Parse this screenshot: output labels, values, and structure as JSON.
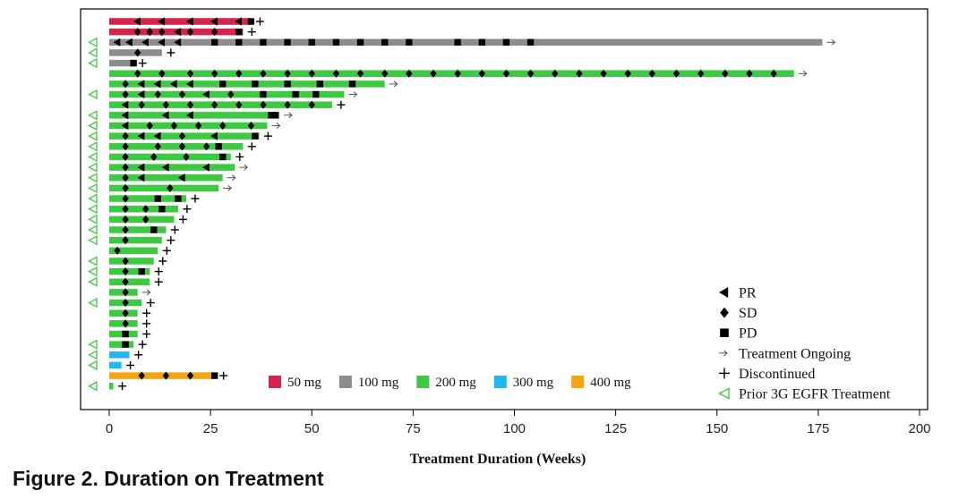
{
  "caption": "Figure 2. Duration on Treatment",
  "chart_data": {
    "type": "bar",
    "orientation": "horizontal",
    "title": "",
    "xlabel": "Treatment Duration (Weeks)",
    "ylabel": "",
    "xlim": [
      0,
      200
    ],
    "x_ticks": [
      0,
      25,
      50,
      75,
      100,
      125,
      150,
      175,
      200
    ],
    "grid": false,
    "legend_position": "bottom-right",
    "doses": [
      {
        "key": "50",
        "label": "50 mg",
        "color": "#d6254a"
      },
      {
        "key": "100",
        "label": "100 mg",
        "color": "#8c8c8c"
      },
      {
        "key": "200",
        "label": "200 mg",
        "color": "#3ec943"
      },
      {
        "key": "300",
        "label": "300 mg",
        "color": "#21b8ef"
      },
      {
        "key": "400",
        "label": "400 mg",
        "color": "#f5a412"
      }
    ],
    "marker_legend": [
      {
        "symbol": "PR",
        "label": "PR"
      },
      {
        "symbol": "SD",
        "label": "SD"
      },
      {
        "symbol": "PD",
        "label": "PD"
      },
      {
        "symbol": "ongoing",
        "label": "Treatment Ongoing"
      },
      {
        "symbol": "discontinued",
        "label": "Discontinued"
      },
      {
        "symbol": "prior3g",
        "label": "Prior 3G EGFR Treatment"
      }
    ],
    "patients": [
      {
        "dose": "50",
        "weeks": 35,
        "status": "discontinued",
        "prior3g": false,
        "markers": [
          [
            "PR",
            7
          ],
          [
            "PR",
            13
          ],
          [
            "PR",
            20
          ],
          [
            "PR",
            26
          ],
          [
            "PR",
            32
          ],
          [
            "PD",
            35
          ]
        ]
      },
      {
        "dose": "50",
        "weeks": 33,
        "status": "discontinued",
        "prior3g": false,
        "markers": [
          [
            "SD",
            7
          ],
          [
            "SD",
            10
          ],
          [
            "SD",
            13
          ],
          [
            "PR",
            17
          ],
          [
            "SD",
            20
          ],
          [
            "SD",
            26
          ],
          [
            "PD",
            32
          ]
        ]
      },
      {
        "dose": "100",
        "weeks": 176,
        "status": "ongoing",
        "prior3g": true,
        "markers": [
          [
            "PR",
            2
          ],
          [
            "PR",
            5
          ],
          [
            "PR",
            9
          ],
          [
            "PR",
            13
          ],
          [
            "PR",
            17
          ],
          [
            "PD",
            26
          ],
          [
            "PD",
            32
          ],
          [
            "PD",
            38
          ],
          [
            "PD",
            44
          ],
          [
            "PD",
            50
          ],
          [
            "PD",
            56
          ],
          [
            "PD",
            62
          ],
          [
            "PD",
            68
          ],
          [
            "PD",
            74
          ],
          [
            "PD",
            86
          ],
          [
            "PD",
            92
          ],
          [
            "PD",
            98
          ],
          [
            "PD",
            104
          ]
        ]
      },
      {
        "dose": "100",
        "weeks": 13,
        "status": "discontinued",
        "prior3g": true,
        "markers": [
          [
            "SD",
            7
          ]
        ]
      },
      {
        "dose": "100",
        "weeks": 6,
        "status": "discontinued",
        "prior3g": true,
        "markers": [
          [
            "PD",
            6
          ]
        ]
      },
      {
        "dose": "200",
        "weeks": 169,
        "status": "ongoing",
        "prior3g": false,
        "markers": [
          [
            "SD",
            7
          ],
          [
            "SD",
            13
          ],
          [
            "SD",
            20
          ],
          [
            "SD",
            26
          ],
          [
            "SD",
            32
          ],
          [
            "SD",
            38
          ],
          [
            "SD",
            44
          ],
          [
            "SD",
            50
          ],
          [
            "SD",
            56
          ],
          [
            "SD",
            62
          ],
          [
            "SD",
            68
          ],
          [
            "SD",
            74
          ],
          [
            "SD",
            80
          ],
          [
            "SD",
            86
          ],
          [
            "SD",
            92
          ],
          [
            "SD",
            98
          ],
          [
            "SD",
            104
          ],
          [
            "SD",
            110
          ],
          [
            "SD",
            116
          ],
          [
            "SD",
            122
          ],
          [
            "SD",
            128
          ],
          [
            "SD",
            134
          ],
          [
            "SD",
            140
          ],
          [
            "SD",
            146
          ],
          [
            "SD",
            152
          ],
          [
            "SD",
            158
          ],
          [
            "SD",
            164
          ]
        ]
      },
      {
        "dose": "200",
        "weeks": 68,
        "status": "ongoing",
        "prior3g": false,
        "markers": [
          [
            "SD",
            4
          ],
          [
            "PR",
            8
          ],
          [
            "PR",
            12
          ],
          [
            "PR",
            16
          ],
          [
            "PR",
            20
          ],
          [
            "PD",
            28
          ],
          [
            "PD",
            36
          ],
          [
            "PD",
            44
          ],
          [
            "PD",
            52
          ],
          [
            "PD",
            60
          ]
        ]
      },
      {
        "dose": "200",
        "weeks": 58,
        "status": "ongoing",
        "prior3g": true,
        "markers": [
          [
            "SD",
            4
          ],
          [
            "PR",
            8
          ],
          [
            "SD",
            12
          ],
          [
            "SD",
            18
          ],
          [
            "PR",
            24
          ],
          [
            "SD",
            30
          ],
          [
            "PD",
            38
          ],
          [
            "PD",
            46
          ],
          [
            "PD",
            51
          ]
        ]
      },
      {
        "dose": "200",
        "weeks": 55,
        "status": "discontinued",
        "prior3g": false,
        "markers": [
          [
            "PR",
            4
          ],
          [
            "SD",
            8
          ],
          [
            "SD",
            14
          ],
          [
            "SD",
            20
          ],
          [
            "SD",
            26
          ],
          [
            "SD",
            32
          ],
          [
            "SD",
            38
          ],
          [
            "SD",
            44
          ],
          [
            "SD",
            50
          ]
        ]
      },
      {
        "dose": "200",
        "weeks": 42,
        "status": "ongoing",
        "prior3g": true,
        "markers": [
          [
            "PR",
            4
          ],
          [
            "PR",
            14
          ],
          [
            "PR",
            20
          ],
          [
            "PD",
            40
          ],
          [
            "PD",
            41
          ]
        ]
      },
      {
        "dose": "200",
        "weeks": 39,
        "status": "ongoing",
        "prior3g": true,
        "markers": [
          [
            "PR",
            4
          ],
          [
            "SD",
            10
          ],
          [
            "SD",
            16
          ],
          [
            "SD",
            22
          ],
          [
            "SD",
            28
          ],
          [
            "SD",
            35
          ]
        ]
      },
      {
        "dose": "200",
        "weeks": 37,
        "status": "discontinued",
        "prior3g": true,
        "markers": [
          [
            "SD",
            4
          ],
          [
            "PR",
            8
          ],
          [
            "PR",
            12
          ],
          [
            "SD",
            18
          ],
          [
            "PR",
            26
          ],
          [
            "PD",
            36
          ]
        ]
      },
      {
        "dose": "200",
        "weeks": 33,
        "status": "discontinued",
        "prior3g": true,
        "markers": [
          [
            "SD",
            4
          ],
          [
            "SD",
            12
          ],
          [
            "SD",
            18
          ],
          [
            "SD",
            24
          ],
          [
            "PD",
            27
          ]
        ]
      },
      {
        "dose": "200",
        "weeks": 30,
        "status": "discontinued",
        "prior3g": true,
        "markers": [
          [
            "SD",
            4
          ],
          [
            "SD",
            11
          ],
          [
            "SD",
            19
          ],
          [
            "PD",
            28
          ]
        ]
      },
      {
        "dose": "200",
        "weeks": 31,
        "status": "ongoing",
        "prior3g": true,
        "markers": [
          [
            "SD",
            4
          ],
          [
            "PR",
            8
          ],
          [
            "PR",
            14
          ],
          [
            "PR",
            24
          ]
        ]
      },
      {
        "dose": "200",
        "weeks": 28,
        "status": "ongoing",
        "prior3g": true,
        "markers": [
          [
            "SD",
            4
          ],
          [
            "PR",
            8
          ],
          [
            "PR",
            18
          ]
        ]
      },
      {
        "dose": "200",
        "weeks": 27,
        "status": "ongoing",
        "prior3g": true,
        "markers": [
          [
            "SD",
            4
          ],
          [
            "SD",
            15
          ]
        ]
      },
      {
        "dose": "200",
        "weeks": 19,
        "status": "discontinued",
        "prior3g": true,
        "markers": [
          [
            "SD",
            4
          ],
          [
            "PD",
            12
          ],
          [
            "PD",
            17
          ]
        ]
      },
      {
        "dose": "200",
        "weeks": 17,
        "status": "discontinued",
        "prior3g": true,
        "markers": [
          [
            "SD",
            4
          ],
          [
            "SD",
            9
          ],
          [
            "PD",
            13
          ]
        ]
      },
      {
        "dose": "200",
        "weeks": 16,
        "status": "discontinued",
        "prior3g": true,
        "markers": [
          [
            "SD",
            4
          ],
          [
            "SD",
            9
          ]
        ]
      },
      {
        "dose": "200",
        "weeks": 14,
        "status": "discontinued",
        "prior3g": true,
        "markers": [
          [
            "SD",
            4
          ],
          [
            "PD",
            11
          ]
        ]
      },
      {
        "dose": "200",
        "weeks": 13,
        "status": "discontinued",
        "prior3g": true,
        "markers": [
          [
            "SD",
            4
          ]
        ]
      },
      {
        "dose": "200",
        "weeks": 12,
        "status": "discontinued",
        "prior3g": false,
        "markers": [
          [
            "SD",
            2
          ]
        ]
      },
      {
        "dose": "200",
        "weeks": 11,
        "status": "discontinued",
        "prior3g": true,
        "markers": [
          [
            "SD",
            4
          ]
        ]
      },
      {
        "dose": "200",
        "weeks": 10,
        "status": "discontinued",
        "prior3g": true,
        "markers": [
          [
            "SD",
            4
          ],
          [
            "PD",
            8
          ]
        ]
      },
      {
        "dose": "200",
        "weeks": 10,
        "status": "discontinued",
        "prior3g": true,
        "markers": [
          [
            "SD",
            4
          ]
        ]
      },
      {
        "dose": "200",
        "weeks": 7,
        "status": "ongoing",
        "prior3g": false,
        "markers": [
          [
            "SD",
            4
          ]
        ]
      },
      {
        "dose": "200",
        "weeks": 8,
        "status": "discontinued",
        "prior3g": true,
        "markers": [
          [
            "SD",
            4
          ]
        ]
      },
      {
        "dose": "200",
        "weeks": 7,
        "status": "discontinued",
        "prior3g": false,
        "markers": [
          [
            "SD",
            4
          ]
        ]
      },
      {
        "dose": "200",
        "weeks": 7,
        "status": "discontinued",
        "prior3g": false,
        "markers": [
          [
            "SD",
            4
          ]
        ]
      },
      {
        "dose": "200",
        "weeks": 7,
        "status": "discontinued",
        "prior3g": false,
        "markers": [
          [
            "PD",
            4
          ]
        ]
      },
      {
        "dose": "200",
        "weeks": 6,
        "status": "discontinued",
        "prior3g": true,
        "markers": [
          [
            "PD",
            4
          ]
        ]
      },
      {
        "dose": "300",
        "weeks": 5,
        "status": "discontinued",
        "prior3g": true,
        "markers": []
      },
      {
        "dose": "300",
        "weeks": 3,
        "status": "discontinued",
        "prior3g": true,
        "markers": []
      },
      {
        "dose": "400",
        "weeks": 26,
        "status": "discontinued",
        "prior3g": false,
        "markers": [
          [
            "SD",
            8
          ],
          [
            "SD",
            14
          ],
          [
            "SD",
            20
          ],
          [
            "PD",
            26
          ]
        ]
      },
      {
        "dose": "200",
        "weeks": 1,
        "status": "discontinued",
        "prior3g": true,
        "markers": []
      }
    ]
  }
}
